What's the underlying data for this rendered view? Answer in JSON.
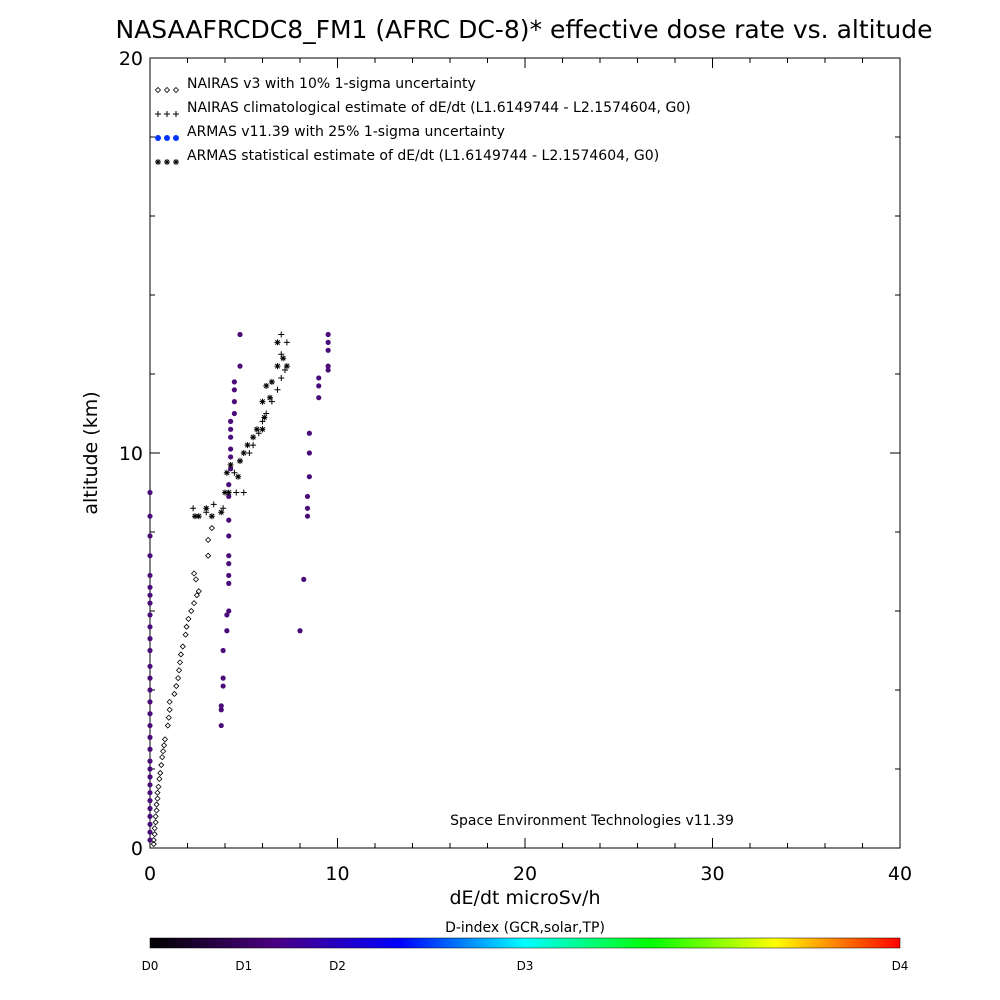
{
  "chart_data": {
    "type": "scatter",
    "title": "NASAAFRCDC8_FM1 (AFRC DC-8)* effective dose rate vs. altitude",
    "xlabel": "dE/dt microSv/h",
    "ylabel": "altitude (km)",
    "xlim": [
      0,
      40
    ],
    "ylim": [
      0,
      20
    ],
    "x_ticks": [
      "0",
      "10",
      "20",
      "30",
      "40"
    ],
    "y_ticks": [
      "0",
      "10",
      "20"
    ],
    "grid": false,
    "legend_position": "top-left",
    "annotation": "Space Environment Technologies v11.39",
    "colors": {
      "armas_legend": "#0033ff",
      "armas_points": "#4b0c7a",
      "markers": "#000000"
    },
    "colorbar": {
      "title": "D-index (GCR,solar,TP)",
      "labels": [
        "D0",
        "D1",
        "D2",
        "D3",
        "D4"
      ],
      "label_values": [
        0,
        0.5,
        1,
        2,
        4
      ],
      "range": [
        0,
        4
      ],
      "stops": [
        "#000000",
        "#4b0082",
        "#0000ff",
        "#00ffff",
        "#00ff00",
        "#ffff00",
        "#ff0000"
      ]
    },
    "series": [
      {
        "name": "NAIRAS v3 with 10% 1-sigma uncertainty",
        "marker": "diamond",
        "points": [
          [
            0.2,
            0.1
          ],
          [
            0.2,
            0.2
          ],
          [
            0.25,
            0.35
          ],
          [
            0.25,
            0.5
          ],
          [
            0.3,
            0.65
          ],
          [
            0.3,
            0.8
          ],
          [
            0.35,
            0.95
          ],
          [
            0.35,
            1.1
          ],
          [
            0.4,
            1.25
          ],
          [
            0.4,
            1.4
          ],
          [
            0.45,
            1.55
          ],
          [
            0.5,
            1.75
          ],
          [
            0.55,
            1.9
          ],
          [
            0.6,
            2.1
          ],
          [
            0.65,
            2.3
          ],
          [
            0.7,
            2.45
          ],
          [
            0.75,
            2.6
          ],
          [
            0.8,
            2.75
          ],
          [
            0.95,
            3.1
          ],
          [
            1.0,
            3.3
          ],
          [
            1.05,
            3.5
          ],
          [
            1.05,
            3.7
          ],
          [
            1.3,
            3.9
          ],
          [
            1.4,
            4.1
          ],
          [
            1.5,
            4.3
          ],
          [
            1.55,
            4.5
          ],
          [
            1.6,
            4.7
          ],
          [
            1.65,
            4.9
          ],
          [
            1.75,
            5.1
          ],
          [
            1.9,
            5.4
          ],
          [
            1.95,
            5.6
          ],
          [
            2.05,
            5.8
          ],
          [
            2.2,
            6.0
          ],
          [
            2.35,
            6.2
          ],
          [
            2.5,
            6.4
          ],
          [
            2.6,
            6.5
          ],
          [
            2.45,
            6.8
          ],
          [
            2.35,
            6.95
          ],
          [
            3.1,
            7.4
          ],
          [
            3.1,
            7.8
          ],
          [
            3.3,
            8.1
          ]
        ]
      },
      {
        "name": "NAIRAS climatological estimate of dE/dt (L1.6149744 - L2.1574604, G0)",
        "marker": "plus",
        "points": [
          [
            2.3,
            8.6
          ],
          [
            3.0,
            8.5
          ],
          [
            3.4,
            8.7
          ],
          [
            3.9,
            8.6
          ],
          [
            4.6,
            9.0
          ],
          [
            5.0,
            9.0
          ],
          [
            4.5,
            9.5
          ],
          [
            4.8,
            9.8
          ],
          [
            5.3,
            10.0
          ],
          [
            5.5,
            10.2
          ],
          [
            5.8,
            10.5
          ],
          [
            6.0,
            10.8
          ],
          [
            6.2,
            11.0
          ],
          [
            6.5,
            11.3
          ],
          [
            6.8,
            11.6
          ],
          [
            7.0,
            11.9
          ],
          [
            7.2,
            12.1
          ],
          [
            7.0,
            12.5
          ],
          [
            7.3,
            12.8
          ],
          [
            7.0,
            13.0
          ]
        ]
      },
      {
        "name": "ARMAS v11.39 with 25% 1-sigma uncertainty",
        "marker": "dot",
        "points": [
          [
            0,
            0.2
          ],
          [
            0,
            0.4
          ],
          [
            0,
            0.6
          ],
          [
            0,
            0.8
          ],
          [
            0,
            1.0
          ],
          [
            0,
            1.2
          ],
          [
            0,
            1.4
          ],
          [
            0,
            1.6
          ],
          [
            0,
            1.8
          ],
          [
            0,
            2.0
          ],
          [
            0,
            2.2
          ],
          [
            0,
            2.5
          ],
          [
            0,
            2.8
          ],
          [
            0,
            3.1
          ],
          [
            0,
            3.4
          ],
          [
            0,
            3.7
          ],
          [
            0,
            4.0
          ],
          [
            0,
            4.3
          ],
          [
            0,
            4.6
          ],
          [
            0,
            5.0
          ],
          [
            0,
            5.3
          ],
          [
            0,
            5.6
          ],
          [
            0,
            5.9
          ],
          [
            0,
            6.2
          ],
          [
            0,
            6.4
          ],
          [
            0,
            6.6
          ],
          [
            0,
            6.9
          ],
          [
            0,
            7.4
          ],
          [
            0,
            7.9
          ],
          [
            0,
            8.4
          ],
          [
            0,
            9.0
          ],
          [
            3.8,
            3.1
          ],
          [
            3.8,
            3.5
          ],
          [
            3.8,
            3.6
          ],
          [
            3.9,
            4.1
          ],
          [
            3.9,
            4.3
          ],
          [
            3.9,
            5.0
          ],
          [
            4.1,
            5.5
          ],
          [
            4.1,
            5.9
          ],
          [
            4.2,
            6.0
          ],
          [
            4.2,
            6.7
          ],
          [
            4.2,
            6.9
          ],
          [
            4.2,
            7.2
          ],
          [
            4.2,
            7.4
          ],
          [
            4.2,
            7.9
          ],
          [
            4.2,
            8.3
          ],
          [
            4.2,
            8.9
          ],
          [
            4.2,
            9.2
          ],
          [
            4.3,
            9.6
          ],
          [
            4.3,
            9.9
          ],
          [
            4.3,
            10.1
          ],
          [
            4.3,
            10.4
          ],
          [
            4.3,
            10.6
          ],
          [
            4.3,
            10.8
          ],
          [
            4.5,
            11.0
          ],
          [
            4.5,
            11.3
          ],
          [
            4.5,
            11.6
          ],
          [
            4.5,
            11.8
          ],
          [
            4.8,
            12.2
          ],
          [
            4.8,
            13.0
          ],
          [
            8.0,
            5.5
          ],
          [
            8.2,
            6.8
          ],
          [
            8.4,
            8.4
          ],
          [
            8.4,
            8.6
          ],
          [
            8.4,
            8.9
          ],
          [
            8.5,
            9.4
          ],
          [
            8.5,
            10.0
          ],
          [
            8.5,
            10.5
          ],
          [
            9.0,
            11.4
          ],
          [
            9.0,
            11.7
          ],
          [
            9.0,
            11.9
          ],
          [
            9.5,
            12.1
          ],
          [
            9.5,
            12.2
          ],
          [
            9.5,
            12.6
          ],
          [
            9.5,
            12.8
          ],
          [
            9.5,
            13.0
          ]
        ]
      },
      {
        "name": "ARMAS statistical estimate of dE/dt (L1.6149744 - L2.1574604, G0)",
        "marker": "asterisk",
        "points": [
          [
            2.4,
            8.4
          ],
          [
            2.6,
            8.4
          ],
          [
            3.0,
            8.6
          ],
          [
            3.3,
            8.4
          ],
          [
            3.8,
            8.5
          ],
          [
            4.0,
            9.0
          ],
          [
            4.2,
            9.0
          ],
          [
            4.1,
            9.5
          ],
          [
            4.3,
            9.7
          ],
          [
            4.7,
            9.4
          ],
          [
            4.8,
            9.8
          ],
          [
            5.0,
            10.0
          ],
          [
            5.2,
            10.2
          ],
          [
            5.5,
            10.4
          ],
          [
            5.7,
            10.6
          ],
          [
            6.0,
            10.6
          ],
          [
            6.1,
            10.9
          ],
          [
            6.0,
            11.3
          ],
          [
            6.4,
            11.4
          ],
          [
            6.2,
            11.7
          ],
          [
            6.5,
            11.8
          ],
          [
            6.8,
            12.2
          ],
          [
            7.3,
            12.2
          ],
          [
            7.1,
            12.4
          ],
          [
            6.8,
            12.8
          ]
        ]
      }
    ]
  }
}
